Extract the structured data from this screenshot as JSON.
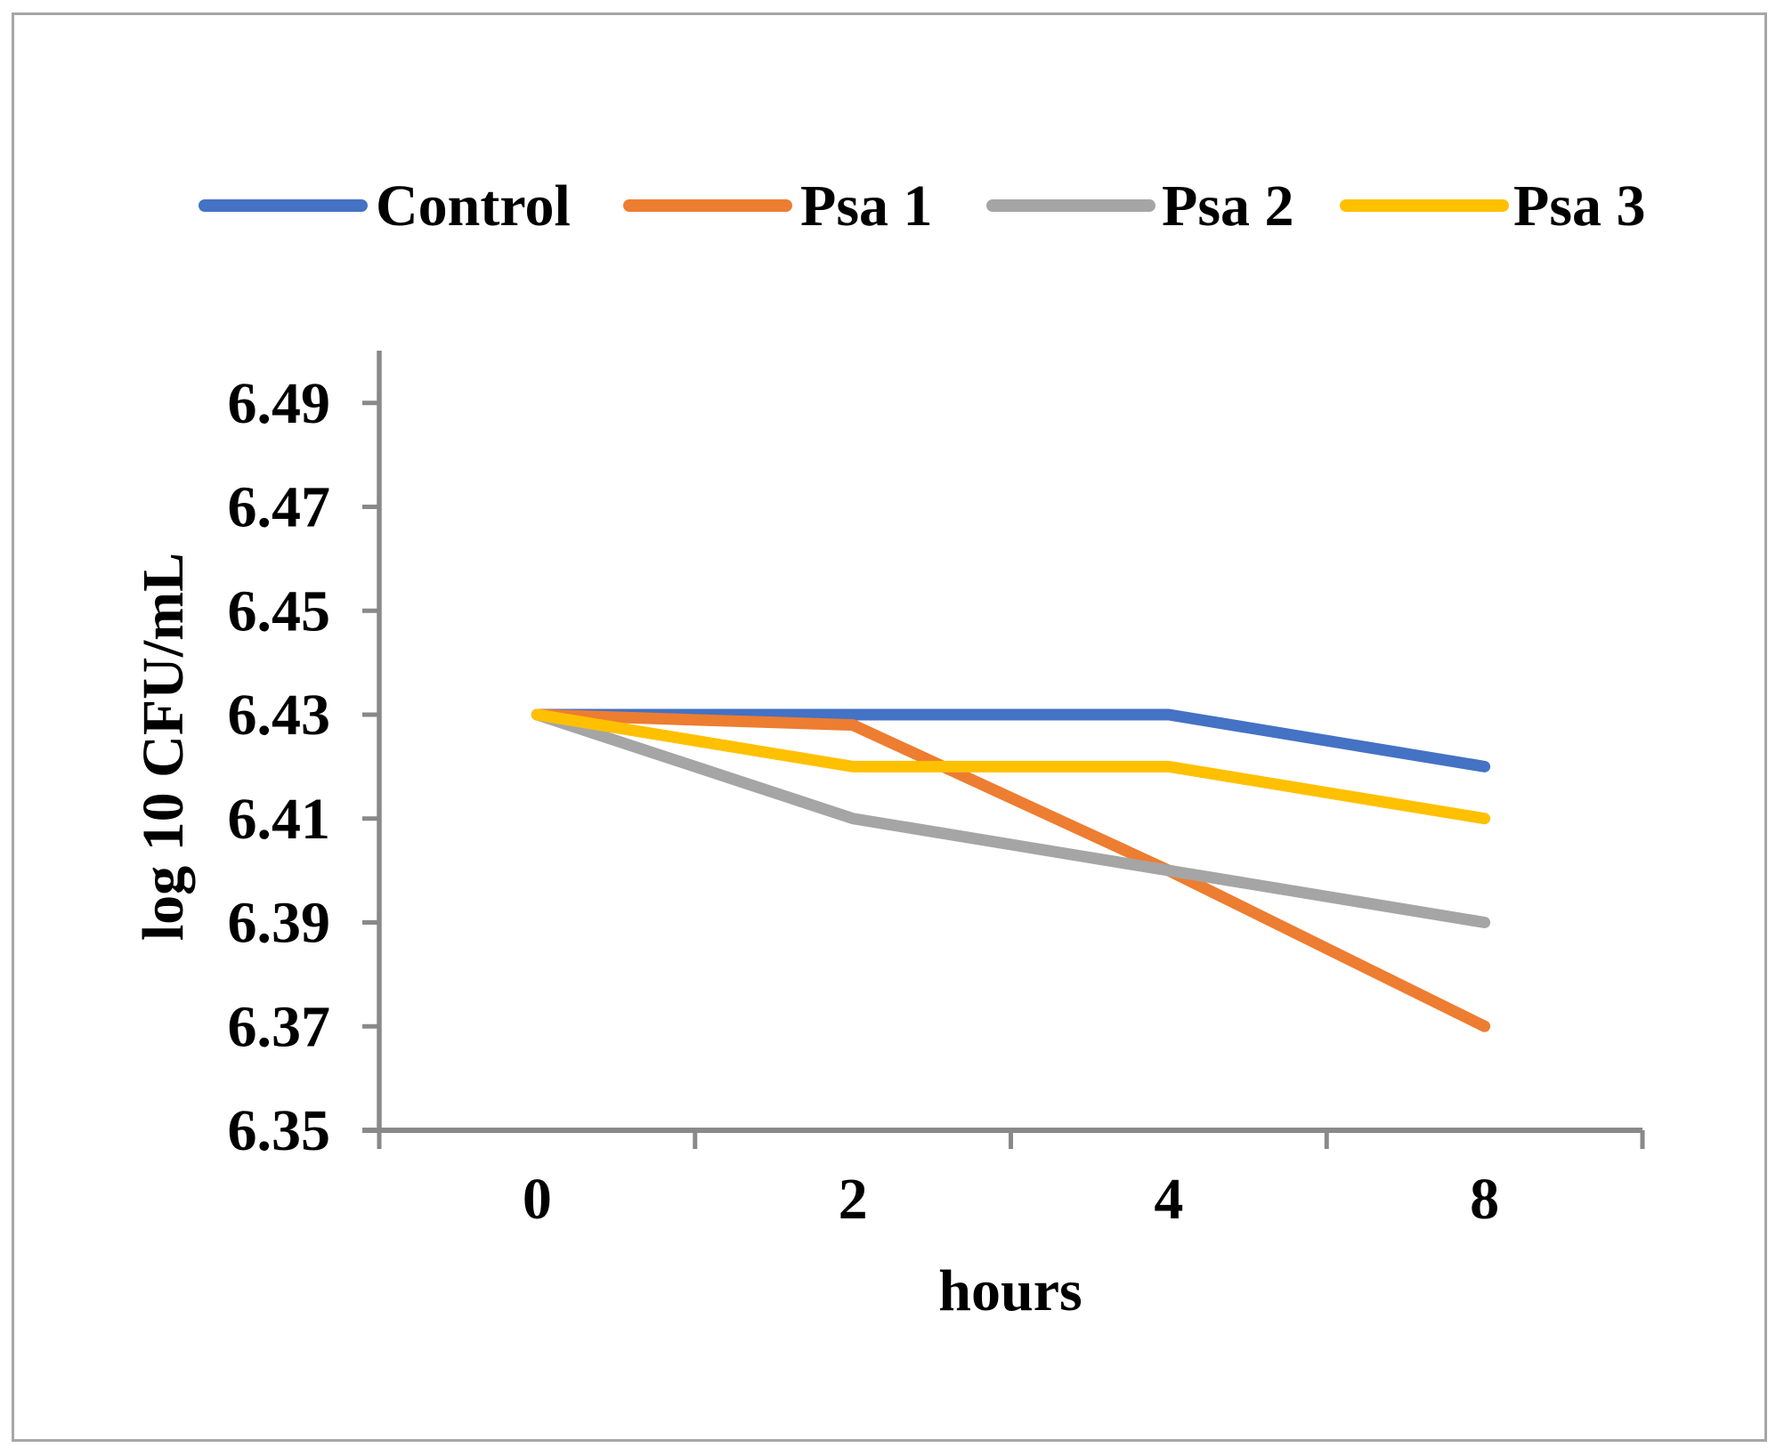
{
  "styles": {
    "background": "#ffffff",
    "border_color": "#a6a6a6",
    "axis_color": "#898989",
    "text_color": "#000000"
  },
  "chart_data": {
    "type": "line",
    "title": "",
    "xlabel": "hours",
    "ylabel": "log 10 CFU/mL",
    "categories": [
      "0",
      "2",
      "4",
      "8"
    ],
    "series": [
      {
        "name": "Control",
        "color": "#4472C4",
        "values": [
          6.43,
          6.43,
          6.43,
          6.42
        ]
      },
      {
        "name": "Psa 1",
        "color": "#ED7D31",
        "values": [
          6.43,
          6.428,
          6.4,
          6.37
        ]
      },
      {
        "name": "Psa 2",
        "color": "#A5A5A5",
        "values": [
          6.43,
          6.41,
          6.4,
          6.39
        ]
      },
      {
        "name": "Psa 3",
        "color": "#FFC000",
        "values": [
          6.43,
          6.42,
          6.42,
          6.41
        ]
      }
    ],
    "y_axis": {
      "min": 6.35,
      "max": 6.5,
      "tick_step": 0.02,
      "tick_labels": [
        "6.35",
        "6.37",
        "6.39",
        "6.41",
        "6.43",
        "6.45",
        "6.47",
        "6.49"
      ]
    },
    "x_axis": {
      "tick_labels": [
        "0",
        "2",
        "4",
        "8"
      ]
    },
    "legend_position": "top",
    "grid": false
  }
}
